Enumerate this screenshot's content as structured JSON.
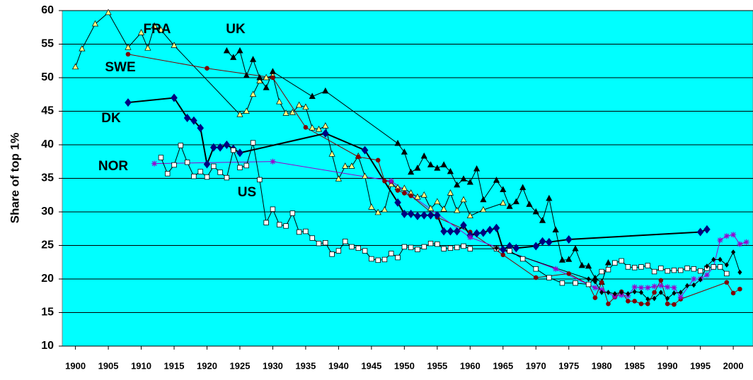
{
  "chart_data": {
    "type": "line",
    "y_label": "Share of top 1%",
    "xlim": [
      1898,
      2003
    ],
    "xticks": [
      1900,
      1905,
      1910,
      1915,
      1920,
      1925,
      1930,
      1935,
      1940,
      1945,
      1950,
      1955,
      1960,
      1965,
      1970,
      1975,
      1980,
      1985,
      1990,
      1995,
      2000
    ],
    "ylim": [
      10,
      60
    ],
    "yticks": [
      10,
      15,
      20,
      25,
      30,
      35,
      40,
      45,
      50,
      55,
      60
    ],
    "grid": true,
    "background": "#00ffff",
    "series": [
      {
        "name": "FRA",
        "marker": "triangle",
        "color": "#ffff80",
        "line_color": "#000000",
        "line_width": 1,
        "x": [
          1900,
          1901,
          1903,
          1905,
          1908,
          1910,
          1911,
          1912,
          1913,
          1915,
          1925,
          1926,
          1927,
          1928,
          1929,
          1930,
          1931,
          1932,
          1933,
          1934,
          1935,
          1936,
          1937,
          1938,
          1939,
          1940,
          1941,
          1942,
          1943,
          1944,
          1945,
          1946,
          1947,
          1948,
          1949,
          1950,
          1951,
          1952,
          1953,
          1954,
          1955,
          1956,
          1957,
          1958,
          1959,
          1960,
          1962,
          1965
        ],
        "values": [
          51.6,
          54.3,
          58,
          59.7,
          54.5,
          56.7,
          54.4,
          57.7,
          57.1,
          54.8,
          44.5,
          45,
          47.5,
          49.5,
          50,
          50.3,
          46.4,
          44.7,
          44.8,
          45.9,
          45.6,
          42.5,
          42.3,
          42.8,
          38.6,
          34.9,
          36.8,
          36.8,
          38.3,
          35.3,
          30.7,
          29.9,
          30.3,
          34.1,
          33.6,
          33.5,
          32.8,
          32.2,
          32.5,
          30.5,
          31.5,
          30.4,
          32.8,
          30.2,
          31.8,
          29.4,
          30.3,
          31.3
        ]
      },
      {
        "name": "UK",
        "marker": "triangle",
        "color": "#000000",
        "line_color": "#000000",
        "line_width": 1,
        "x": [
          1923,
          1924,
          1925,
          1926,
          1927,
          1928,
          1929,
          1930,
          1936,
          1938,
          1949,
          1950,
          1951,
          1952,
          1953,
          1954,
          1955,
          1956,
          1957,
          1958,
          1959,
          1960,
          1961,
          1962,
          1964,
          1965,
          1966,
          1967,
          1968,
          1969,
          1970,
          1971,
          1972,
          1973,
          1974,
          1975,
          1976,
          1977,
          1978,
          1979,
          1980,
          1981
        ],
        "values": [
          54,
          53,
          54,
          50.3,
          52.7,
          50,
          48.5,
          50.9,
          47.2,
          48,
          40.2,
          38.9,
          35.9,
          36.5,
          38.3,
          37,
          36.5,
          37,
          36,
          34,
          34.9,
          34.4,
          36.4,
          31.8,
          34.7,
          33.3,
          30.8,
          31.5,
          33.6,
          31.1,
          30,
          28.7,
          32,
          27.3,
          22.8,
          22.9,
          24.5,
          22,
          21.9,
          20.1,
          19.5,
          22.4
        ]
      },
      {
        "name": "SWE",
        "marker": "circle",
        "color": "#800000",
        "line_color": "#800000",
        "line_width": 1,
        "x": [
          1908,
          1920,
          1930,
          1935,
          1943,
          1946,
          1947,
          1948,
          1949,
          1950,
          1951,
          1955,
          1960,
          1965,
          1970,
          1975,
          1978,
          1979,
          1980,
          1981,
          1982,
          1983,
          1984,
          1985,
          1986,
          1987,
          1988,
          1989,
          1990,
          1991,
          1992,
          1999,
          2000,
          2001
        ],
        "values": [
          53.5,
          51.4,
          50,
          42.6,
          38.2,
          37.7,
          34.6,
          34.5,
          33.2,
          32.8,
          32.4,
          29.2,
          27,
          23.6,
          20.2,
          20.8,
          19.2,
          17.2,
          19.5,
          16.3,
          17.3,
          18.1,
          16.7,
          16.7,
          16.3,
          16.3,
          18,
          19.8,
          16.3,
          16.2,
          17,
          19.5,
          17.9,
          18.5
        ]
      },
      {
        "name": "DK",
        "marker": "diamond",
        "color": "#000080",
        "line_color": "#000000",
        "line_width": 2,
        "x": [
          1908,
          1915,
          1917,
          1918,
          1919,
          1920,
          1921,
          1922,
          1923,
          1924,
          1925,
          1938,
          1944,
          1949,
          1950,
          1951,
          1952,
          1953,
          1954,
          1955,
          1956,
          1957,
          1958,
          1959,
          1960,
          1961,
          1962,
          1963,
          1964,
          1965,
          1966,
          1967,
          1970,
          1971,
          1972,
          1975,
          1995,
          1996
        ],
        "values": [
          46.3,
          47,
          44,
          43.6,
          42.5,
          37.1,
          39.6,
          39.6,
          40,
          39.4,
          38.8,
          41.7,
          39.2,
          31.4,
          29.7,
          29.7,
          29.4,
          29.5,
          29.5,
          29.5,
          27.1,
          27.1,
          27.1,
          28,
          26.5,
          26.8,
          26.9,
          27.3,
          27.6,
          24.4,
          24.9,
          24.6,
          24.9,
          25.6,
          25.5,
          25.9,
          27,
          27.4
        ]
      },
      {
        "name": "NOR",
        "marker": "star",
        "color": "#9900cc",
        "line_color": "#9900cc",
        "line_width": 1,
        "x": [
          1912,
          1930,
          1948,
          1960,
          1973,
          1979,
          1980,
          1982,
          1983,
          1984,
          1985,
          1986,
          1987,
          1988,
          1989,
          1990,
          1991,
          1992,
          1994,
          1995,
          1996,
          1997,
          1998,
          1999,
          2000,
          2001,
          2002
        ],
        "values": [
          37.2,
          37.5,
          34.6,
          26.2,
          21.5,
          18.7,
          18.4,
          17.4,
          17.6,
          17.5,
          18.8,
          18.7,
          18.7,
          18.9,
          19,
          18.8,
          18.7,
          17.3,
          20,
          20,
          20.6,
          21.8,
          25.8,
          26.4,
          26.6,
          25.2,
          25.5
        ]
      },
      {
        "name": "US",
        "marker": "square",
        "color": "#ffffff",
        "line_color": "#000000",
        "line_width": 1,
        "x": [
          1913,
          1914,
          1915,
          1916,
          1917,
          1918,
          1919,
          1920,
          1921,
          1922,
          1923,
          1924,
          1925,
          1926,
          1927,
          1928,
          1929,
          1930,
          1931,
          1932,
          1933,
          1934,
          1935,
          1936,
          1937,
          1938,
          1939,
          1940,
          1941,
          1942,
          1943,
          1944,
          1945,
          1946,
          1947,
          1948,
          1949,
          1950,
          1951,
          1952,
          1953,
          1954,
          1955,
          1956,
          1957,
          1958,
          1959,
          1960,
          1964,
          1966,
          1968,
          1970,
          1972,
          1974,
          1976,
          1978,
          1980,
          1981,
          1982,
          1983,
          1984,
          1985,
          1986,
          1987,
          1988,
          1989,
          1990,
          1991,
          1992,
          1993,
          1994,
          1995,
          1996,
          1997,
          1998,
          1999
        ],
        "values": [
          38.1,
          35.7,
          37,
          39.9,
          37.4,
          35.3,
          36,
          35.2,
          36.8,
          35.9,
          35.1,
          39.2,
          36.6,
          36.9,
          40.3,
          34.8,
          28.4,
          30.4,
          28.1,
          27.9,
          29.8,
          27,
          27.1,
          26.1,
          25.3,
          25.4,
          23.7,
          24.2,
          25.6,
          24.8,
          24.6,
          24.2,
          23,
          22.8,
          22.9,
          23.8,
          23.2,
          24.8,
          24.7,
          24.4,
          24.8,
          25.3,
          25.2,
          24.5,
          24.6,
          24.7,
          24.9,
          24.5,
          24.5,
          24.2,
          23,
          21.5,
          20.2,
          19.4,
          19.4,
          19.2,
          21.1,
          21.4,
          22.4,
          22.7,
          21.8,
          21.7,
          21.8,
          22,
          21.1,
          21.6,
          21.2,
          21.3,
          21.3,
          21.6,
          21.5,
          21.2,
          21.6,
          21.8,
          21.8,
          20.8
        ]
      },
      {
        "marker": "diamond",
        "color": "#000000",
        "line_color": "#000000",
        "line_width": 1,
        "x": [
          1964,
          1978,
          1979,
          1980,
          1981,
          1982,
          1983,
          1984,
          1985,
          1986,
          1987,
          1988,
          1989,
          1990,
          1991,
          1992,
          1993,
          1994,
          1995,
          1996,
          1997,
          1998,
          1999,
          2000,
          2001
        ],
        "values": [
          24.6,
          20,
          19.6,
          18,
          18,
          17.8,
          18,
          17.8,
          18.1,
          18,
          17,
          17.1,
          18,
          17.1,
          17.9,
          18,
          19,
          19.1,
          19.9,
          21.9,
          22.9,
          22.9,
          22.1,
          24,
          21
        ]
      }
    ]
  }
}
